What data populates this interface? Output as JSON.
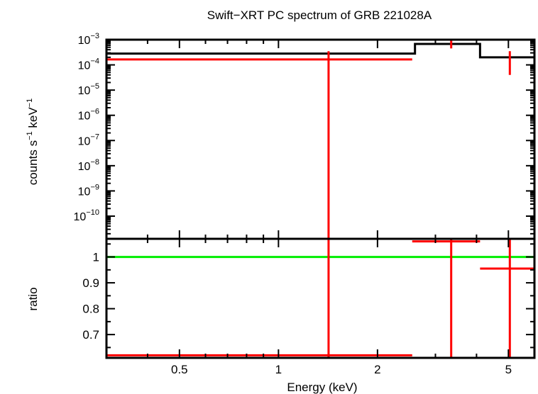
{
  "chart_data": {
    "type": "line",
    "title": "Swift−XRT PC spectrum of GRB 221028A",
    "xlabel": "Energy (keV)",
    "x_scale": "log",
    "xlim": [
      0.3,
      6.0
    ],
    "x_ticks": [
      {
        "value": 0.5,
        "label": "0.5"
      },
      {
        "value": 1,
        "label": "1"
      },
      {
        "value": 2,
        "label": "2"
      },
      {
        "value": 5,
        "label": "5"
      }
    ],
    "panels": [
      {
        "name": "spectrum",
        "ylabel": {
          "base": "counts s",
          "exp1": "−1",
          "mid": " keV",
          "exp2": "−1"
        },
        "y_scale": "log",
        "ylim_exp": [
          -10.9,
          -3.0
        ],
        "y_ticks": [
          {
            "exp": -3,
            "base": "10",
            "sup": "−3"
          },
          {
            "exp": -4,
            "base": "10",
            "sup": "−4"
          },
          {
            "exp": -5,
            "base": "10",
            "sup": "−5"
          },
          {
            "exp": -6,
            "base": "10",
            "sup": "−6"
          },
          {
            "exp": -7,
            "base": "10",
            "sup": "−7"
          },
          {
            "exp": -8,
            "base": "10",
            "sup": "−8"
          },
          {
            "exp": -9,
            "base": "10",
            "sup": "−9"
          },
          {
            "exp": -10,
            "base": "10",
            "sup": "−10"
          }
        ],
        "model": {
          "name": "model",
          "color": "#000000",
          "bins": [
            {
              "x0": 0.3,
              "x1": 2.6,
              "y": 0.00028
            },
            {
              "x0": 2.6,
              "x1": 4.1,
              "y": 0.00068
            },
            {
              "x0": 4.1,
              "x1": 6.0,
              "y": 0.0002
            }
          ]
        },
        "data": {
          "name": "data",
          "color": "#ff0000",
          "points": [
            {
              "x0": 0.3,
              "x1": 2.55,
              "y": 0.000165,
              "x": 1.42,
              "ylo": 1e-11,
              "yhi": 0.00035
            },
            {
              "x": 3.35,
              "y": 0.00068,
              "ylo": 0.00045,
              "yhi": 0.001
            },
            {
              "x": 5.05,
              "y": 0.0002,
              "ylo": 4e-05,
              "yhi": 0.00035
            }
          ]
        }
      },
      {
        "name": "ratio",
        "ylabel": "ratio",
        "y_scale": "linear",
        "ylim": [
          0.61,
          1.07
        ],
        "y_ticks": [
          {
            "value": 1,
            "label": "1"
          },
          {
            "value": 0.9,
            "label": "0.9"
          },
          {
            "value": 0.8,
            "label": "0.8"
          },
          {
            "value": 0.7,
            "label": "0.7"
          }
        ],
        "reference_line": {
          "name": "unity",
          "y": 1.0,
          "color": "#00ee00"
        },
        "data": {
          "name": "ratio",
          "color": "#ff0000",
          "points": [
            {
              "x0": 0.3,
              "x1": 2.55,
              "y": 0.62,
              "x": 1.42,
              "ylo": 0.6,
              "yhi": 1.07
            },
            {
              "x0": 2.55,
              "x1": 4.1,
              "y": 1.06,
              "x": 3.35,
              "ylo": 0.6,
              "yhi": 1.07
            },
            {
              "x0": 4.1,
              "x1": 6.0,
              "y": 0.955,
              "x": 5.05,
              "ylo": 0.6,
              "yhi": 1.07
            }
          ]
        }
      }
    ]
  }
}
